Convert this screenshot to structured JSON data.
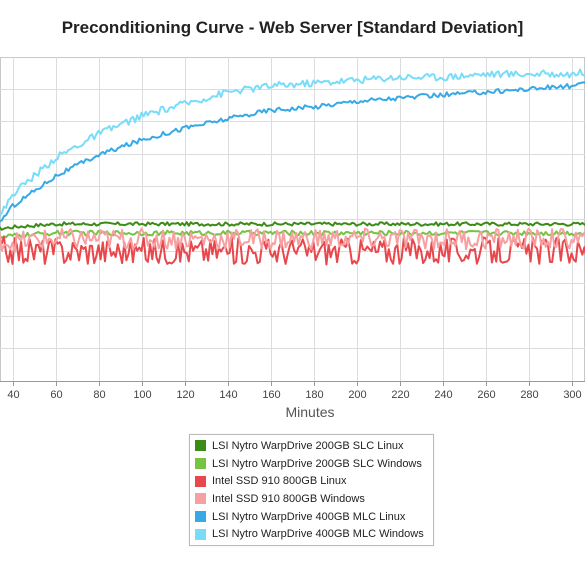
{
  "chart_data": {
    "type": "line",
    "title": "Preconditioning Curve - Web Server [Standard Deviation]",
    "xlabel": "Minutes",
    "ylabel": "",
    "xlim": [
      30,
      310
    ],
    "ylim": [
      0,
      100
    ],
    "x_ticks": [
      40,
      60,
      80,
      100,
      120,
      140,
      160,
      180,
      200,
      220,
      240,
      260,
      280,
      300
    ],
    "grid": true,
    "legend_position": "bottom-center",
    "series": [
      {
        "name": "LSI Nytro WarpDrive 200GB SLC Linux",
        "color": "#3c8b16",
        "x": [
          30,
          40,
          60,
          80,
          100,
          120,
          140,
          160,
          180,
          200,
          220,
          240,
          260,
          280,
          300,
          310
        ],
        "y": [
          45,
          46,
          47,
          47,
          47,
          47,
          47,
          47,
          47,
          47,
          47,
          47,
          47,
          47,
          47,
          47
        ],
        "noise": 0.6
      },
      {
        "name": "LSI Nytro WarpDrive 200GB SLC Windows",
        "color": "#77c342",
        "x": [
          30,
          40,
          60,
          80,
          100,
          120,
          140,
          160,
          180,
          200,
          220,
          240,
          260,
          280,
          300,
          310
        ],
        "y": [
          42,
          43,
          44,
          44,
          44,
          44,
          44,
          44,
          44,
          44,
          44,
          44,
          44,
          44,
          44,
          44
        ],
        "noise": 0.8
      },
      {
        "name": "Intel SSD 910 800GB Linux",
        "color": "#e8474c",
        "x": [
          30,
          40,
          60,
          80,
          100,
          120,
          140,
          160,
          180,
          200,
          220,
          240,
          260,
          280,
          300,
          310
        ],
        "y": [
          39,
          38,
          38,
          38,
          38,
          38,
          38,
          38,
          38,
          38,
          38,
          38,
          38,
          38,
          38,
          38
        ],
        "noise": 4.5
      },
      {
        "name": "Intel SSD 910 800GB Windows",
        "color": "#f7a0a2",
        "x": [
          30,
          40,
          60,
          80,
          100,
          120,
          140,
          160,
          180,
          200,
          220,
          240,
          260,
          280,
          300,
          310
        ],
        "y": [
          42,
          41,
          42,
          42,
          42,
          42,
          42,
          42,
          42,
          42,
          42,
          42,
          42,
          42,
          42,
          42
        ],
        "noise": 3.5
      },
      {
        "name": "LSI Nytro WarpDrive 400GB MLC Linux",
        "color": "#36a9e6",
        "x": [
          30,
          40,
          60,
          80,
          100,
          120,
          140,
          160,
          180,
          200,
          220,
          240,
          260,
          280,
          300,
          310
        ],
        "y": [
          44,
          53,
          63,
          70,
          75,
          79,
          82,
          85,
          86,
          88,
          89,
          90,
          91,
          92,
          93,
          94
        ],
        "noise": 0.8
      },
      {
        "name": "LSI Nytro WarpDrive 400GB MLC Windows",
        "color": "#79dcf8",
        "x": [
          30,
          40,
          60,
          80,
          100,
          120,
          140,
          160,
          180,
          200,
          220,
          240,
          260,
          280,
          300,
          310
        ],
        "y": [
          44,
          57,
          69,
          77,
          83,
          87,
          91,
          93,
          94,
          95,
          96,
          96,
          97,
          97,
          97,
          98
        ],
        "noise": 1.2
      }
    ]
  }
}
